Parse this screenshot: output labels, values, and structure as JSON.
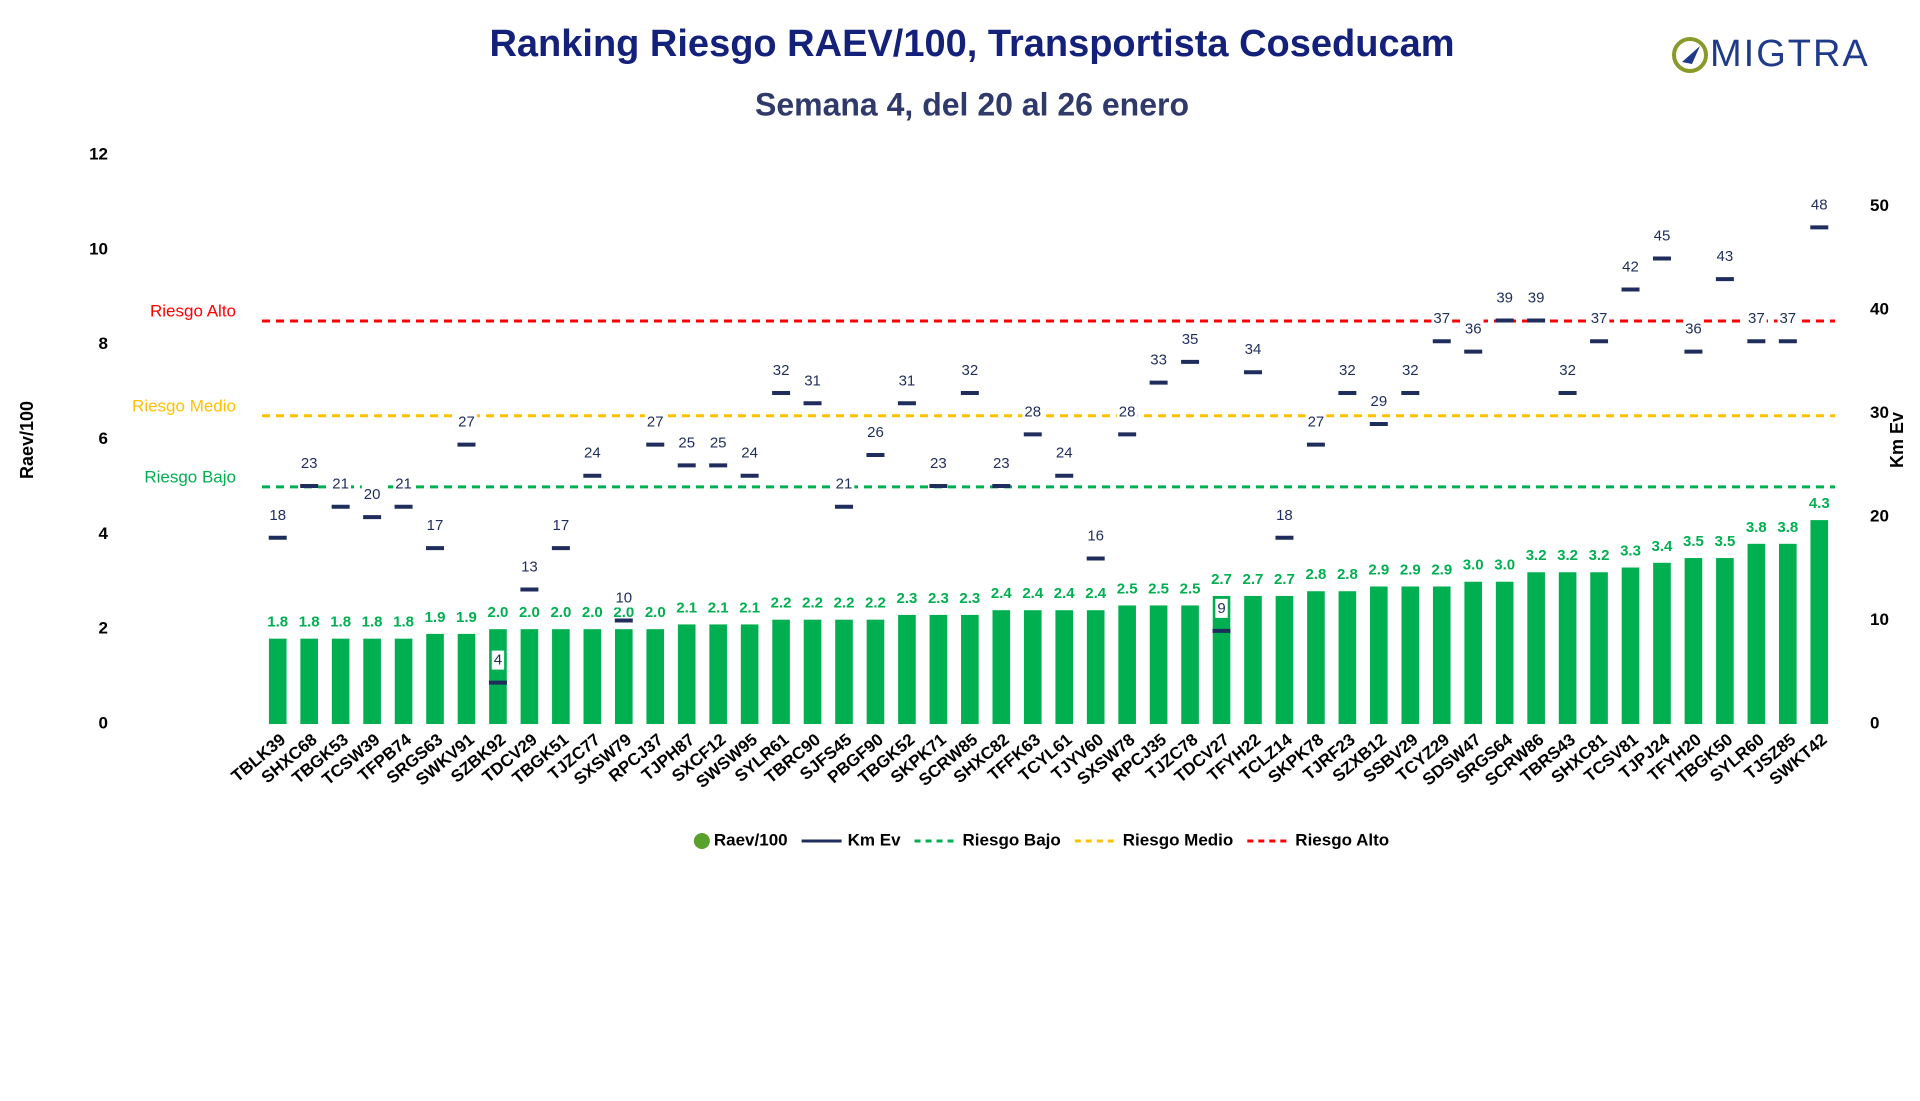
{
  "logo": {
    "text": "MIGTRA"
  },
  "chart_data": {
    "type": "bar",
    "title": "Ranking Riesgo RAEV/100, Transportista Coseducam",
    "subtitle": "Semana 4, del 20 al 26 enero",
    "y_label": "Raev/100",
    "y2_label": "Km Ev",
    "categories": [
      "TBLK39",
      "SHXC68",
      "TBGK53",
      "TCSW39",
      "TFPB74",
      "SRGS63",
      "SWKV91",
      "SZBK92",
      "TDCV29",
      "TBGK51",
      "TJZC77",
      "SXSW79",
      "RPCJ37",
      "TJPH87",
      "SXCF12",
      "SWSW95",
      "SYLR61",
      "TBRC90",
      "SJFS45",
      "PBGF90",
      "TBGK52",
      "SKPK71",
      "SCRW85",
      "SHXC82",
      "TFFK63",
      "TCYL61",
      "TJYV60",
      "SXSW78",
      "RPCJ35",
      "TJZC78",
      "TDCV27",
      "TFYH22",
      "TCLZ14",
      "SKPK78",
      "TJRF23",
      "SZXB12",
      "SSBV29",
      "TCYZ29",
      "SDSW47",
      "SRGS64",
      "SCRW86",
      "TBRS43",
      "SHXC81",
      "TCSV81",
      "TJPJ24",
      "TFYH20",
      "TBGK50",
      "SYLR60",
      "TJSZ85",
      "SWKT42"
    ],
    "series": [
      {
        "name": "Raev/100",
        "type": "bar",
        "color": "#00b050",
        "values": [
          1.8,
          1.8,
          1.8,
          1.8,
          1.8,
          1.9,
          1.9,
          2.0,
          2.0,
          2.0,
          2.0,
          2.0,
          2.0,
          2.1,
          2.1,
          2.1,
          2.2,
          2.2,
          2.2,
          2.2,
          2.3,
          2.3,
          2.3,
          2.4,
          2.4,
          2.4,
          2.4,
          2.5,
          2.5,
          2.5,
          2.7,
          2.7,
          2.7,
          2.8,
          2.8,
          2.9,
          2.9,
          2.9,
          3.0,
          3.0,
          3.2,
          3.2,
          3.2,
          3.3,
          3.4,
          3.5,
          3.5,
          3.8,
          3.8,
          4.3
        ],
        "value_labels": [
          "1.8",
          "1.8",
          "1.8",
          "1.8",
          "1.8",
          "1.9",
          "1.9",
          "2.0",
          "2.0",
          "2.0",
          "2.0",
          "2.0",
          "2.0",
          "2.1",
          "2.1",
          "2.1",
          "2.2",
          "2.2",
          "2.2",
          "2.2",
          "2.3",
          "2.3",
          "2.3",
          "2.4",
          "2.4",
          "2.4",
          "2.4",
          "2.5",
          "2.5",
          "2.5",
          "2.7",
          "2.7",
          "2.7",
          "2.8",
          "2.8",
          "2.9",
          "2.9",
          "2.9",
          "3.0",
          "3.0",
          "3.2",
          "3.2",
          "3.2",
          "3.3",
          "3.4",
          "3.5",
          "3.5",
          "3.8",
          "3.8",
          "4.3"
        ]
      },
      {
        "name": "Km Ev",
        "type": "marker",
        "axis": "y2",
        "color": "#1f2d5c",
        "values": [
          18,
          23,
          21,
          20,
          21,
          17,
          27,
          4,
          13,
          17,
          24,
          10,
          27,
          25,
          25,
          24,
          32,
          31,
          21,
          26,
          31,
          23,
          32,
          23,
          28,
          24,
          16,
          28,
          33,
          35,
          9,
          34,
          18,
          27,
          32,
          29,
          32,
          37,
          36,
          39,
          39,
          32,
          37,
          42,
          45,
          36,
          43,
          37,
          37,
          48
        ]
      }
    ],
    "reference_lines": [
      {
        "name": "Riesgo Bajo",
        "value": 5,
        "color": "#00b050"
      },
      {
        "name": "Riesgo Medio",
        "value": 6.5,
        "color": "#ffc000"
      },
      {
        "name": "Riesgo Alto",
        "value": 8.5,
        "color": "#ff0000"
      }
    ],
    "ylim": [
      0,
      12
    ],
    "yticks": [
      0,
      2,
      4,
      6,
      8,
      10,
      12
    ],
    "y2lim": [
      0,
      55
    ],
    "y2ticks": [
      0,
      10,
      20,
      30,
      40,
      50
    ],
    "legend": "bottom"
  }
}
